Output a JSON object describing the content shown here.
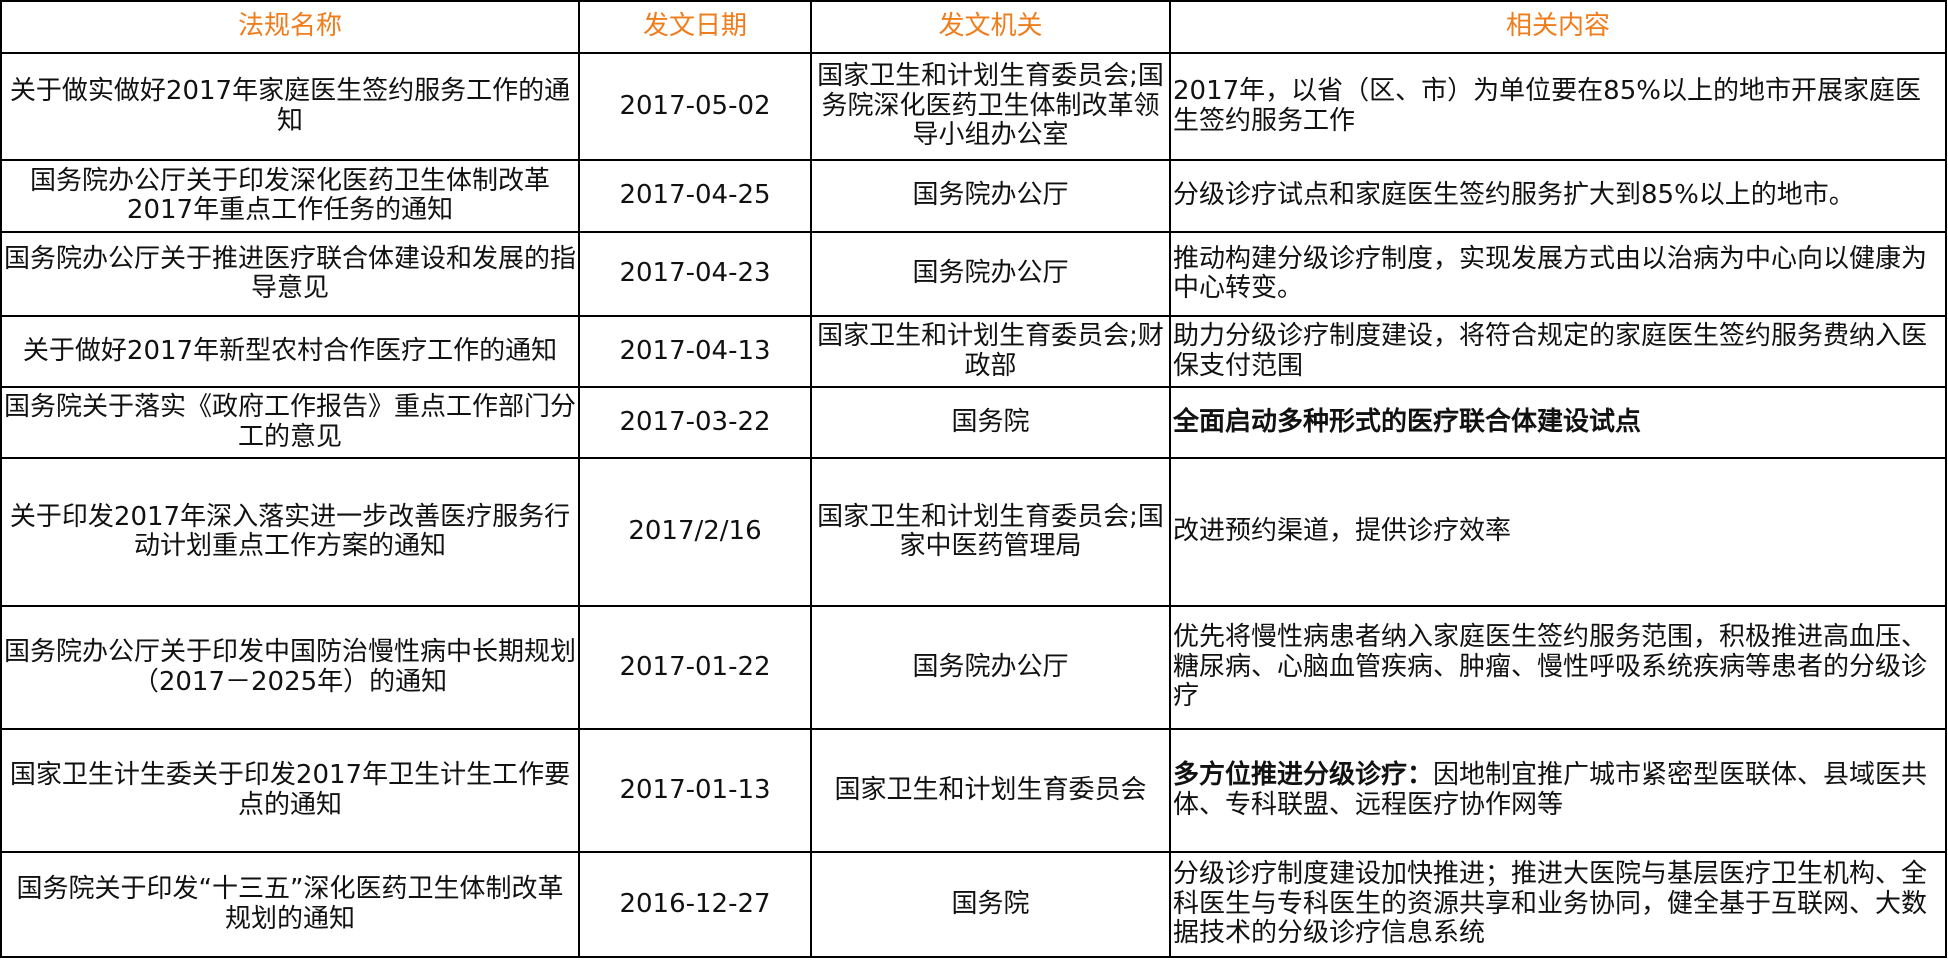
{
  "table": {
    "header": [
      "法规名称",
      "发文日期",
      "发文机关",
      "相关内容"
    ],
    "rows": [
      {
        "name": "关于做实做好2017年家庭医生签约服务工作的通知",
        "date": "2017-05-02",
        "agency": "国家卫生和计划生育委员会;国务院深化医药卫生体制改革领导小组办公室",
        "content": "2017年，以省（区、市）为单位要在85%以上的地市开展家庭医生签约服务工作"
      },
      {
        "name": "国务院办公厅关于印发深化医药卫生体制改革2017年重点工作任务的通知",
        "date": "2017-04-25",
        "agency": "国务院办公厅",
        "content": "分级诊疗试点和家庭医生签约服务扩大到85%以上的地市。"
      },
      {
        "name": "国务院办公厅关于推进医疗联合体建设和发展的指导意见",
        "date": "2017-04-23",
        "agency": "国务院办公厅",
        "content": "推动构建分级诊疗制度，实现发展方式由以治病为中心向以健康为中心转变。"
      },
      {
        "name": "关于做好2017年新型农村合作医疗工作的通知",
        "date": "2017-04-13",
        "agency": "国家卫生和计划生育委员会;财政部",
        "content": "助力分级诊疗制度建设，将符合规定的家庭医生签约服务费纳入医保支付范围"
      },
      {
        "name": "国务院关于落实《政府工作报告》重点工作部门分工的意见",
        "date": "2017-03-22",
        "agency": "国务院",
        "content_bold": "全面启动多种形式的医疗联合体建设试点"
      },
      {
        "name": "关于印发2017年深入落实进一步改善医疗服务行动计划重点工作方案的通知",
        "date": "2017/2/16",
        "agency": "国家卫生和计划生育委员会;国家中医药管理局",
        "content": "改进预约渠道，提供诊疗效率"
      },
      {
        "name": "国务院办公厅关于印发中国防治慢性病中长期规划（2017－2025年）的通知",
        "date": "2017-01-22",
        "agency": "国务院办公厅",
        "content": "优先将慢性病患者纳入家庭医生签约服务范围，积极推进高血压、糖尿病、心脑血管疾病、肿瘤、慢性呼吸系统疾病等患者的分级诊疗"
      },
      {
        "name": "国家卫生计生委关于印发2017年卫生计生工作要点的通知",
        "date": "2017-01-13",
        "agency": "国家卫生和计划生育委员会",
        "content_bold": "多方位推进分级诊疗：",
        "content": "因地制宜推广城市紧密型医联体、县域医共体、专科联盟、远程医疗协作网等"
      },
      {
        "name": "国务院关于印发“十三五”深化医药卫生体制改革规划的通知",
        "date": "2016-12-27",
        "agency": "国务院",
        "content": "分级诊疗制度建设加快推进；推进大医院与基层医疗卫生机构、全科医生与专科医生的资源共享和业务协同，健全基于互联网、大数据技术的分级诊疗信息系统"
      }
    ]
  }
}
